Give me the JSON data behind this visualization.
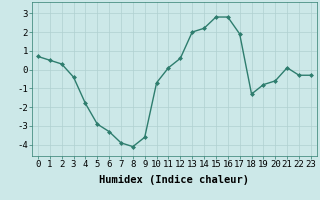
{
  "x": [
    0,
    1,
    2,
    3,
    4,
    5,
    6,
    7,
    8,
    9,
    10,
    11,
    12,
    13,
    14,
    15,
    16,
    17,
    18,
    19,
    20,
    21,
    22,
    23
  ],
  "y": [
    0.7,
    0.5,
    0.3,
    -0.4,
    -1.8,
    -2.9,
    -3.3,
    -3.9,
    -4.1,
    -3.6,
    -0.7,
    0.1,
    0.6,
    2.0,
    2.2,
    2.8,
    2.8,
    1.9,
    -1.3,
    -0.8,
    -0.6,
    0.1,
    -0.3,
    -0.3
  ],
  "line_color": "#2e7d6e",
  "marker": "D",
  "marker_size": 2.0,
  "bg_color": "#cce8e8",
  "grid_color": "#b0d0d0",
  "xlabel": "Humidex (Indice chaleur)",
  "xlim_min": -0.5,
  "xlim_max": 23.5,
  "ylim_min": -4.6,
  "ylim_max": 3.6,
  "yticks": [
    -4,
    -3,
    -2,
    -1,
    0,
    1,
    2,
    3
  ],
  "xticks": [
    0,
    1,
    2,
    3,
    4,
    5,
    6,
    7,
    8,
    9,
    10,
    11,
    12,
    13,
    14,
    15,
    16,
    17,
    18,
    19,
    20,
    21,
    22,
    23
  ],
  "xlabel_fontsize": 7.5,
  "tick_fontsize": 6.5,
  "linewidth": 1.0
}
